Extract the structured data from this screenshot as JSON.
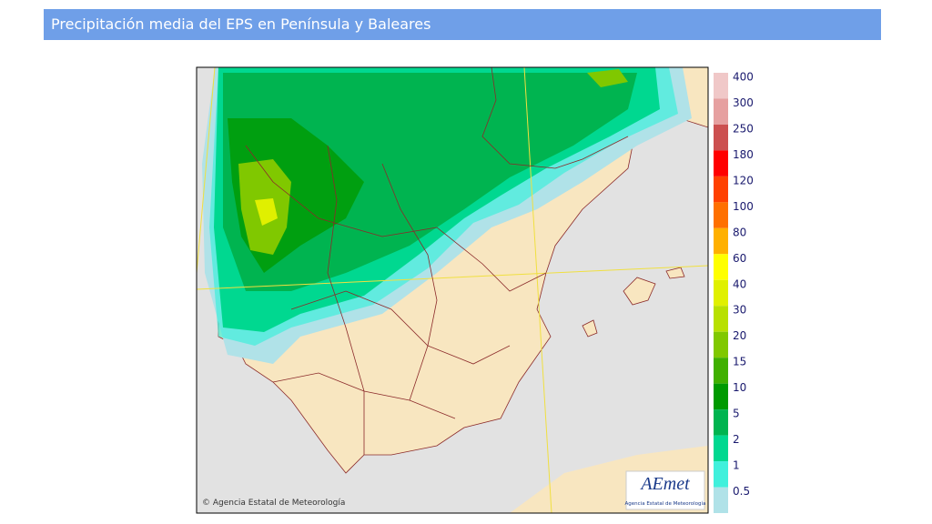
{
  "header": {
    "title": "Precipitación media del EPS en Península y Baleares"
  },
  "map": {
    "copyright": "© Agencia Estatal de Meteorología",
    "logo": {
      "name": "AEmet",
      "subtitle": "Agencia Estatal de Meteorología"
    }
  },
  "legend": {
    "items": [
      {
        "value": 400,
        "color": "#f0c8c8"
      },
      {
        "value": 300,
        "color": "#e6a0a0"
      },
      {
        "value": 250,
        "color": "#cc5050"
      },
      {
        "value": 180,
        "color": "#ff0000"
      },
      {
        "value": 120,
        "color": "#ff4000"
      },
      {
        "value": 100,
        "color": "#ff7000"
      },
      {
        "value": 80,
        "color": "#ffb000"
      },
      {
        "value": 60,
        "color": "#ffff00"
      },
      {
        "value": 40,
        "color": "#e0f000"
      },
      {
        "value": 30,
        "color": "#b8e000"
      },
      {
        "value": 20,
        "color": "#80c800"
      },
      {
        "value": 15,
        "color": "#40b000"
      },
      {
        "value": 10,
        "color": "#009a00"
      },
      {
        "value": 5,
        "color": "#00b450"
      },
      {
        "value": 2,
        "color": "#00d890"
      },
      {
        "value": 1,
        "color": "#40f0dc"
      },
      {
        "value": 0.5,
        "color": "#b0e2e8"
      }
    ]
  }
}
